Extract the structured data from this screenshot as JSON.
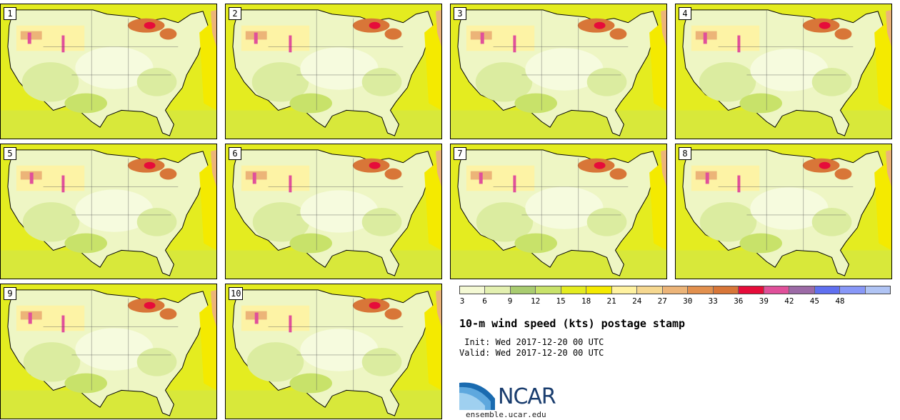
{
  "members": [
    "1",
    "2",
    "3",
    "4",
    "5",
    "6",
    "7",
    "8",
    "9",
    "10"
  ],
  "colorbar": {
    "ticks": [
      "3",
      "6",
      "9",
      "12",
      "15",
      "18",
      "21",
      "24",
      "27",
      "30",
      "33",
      "36",
      "39",
      "42",
      "45",
      "48"
    ],
    "colors": [
      "#f4f9d4",
      "#e3f0b0",
      "#a9cc70",
      "#c8e26a",
      "#e4ec20",
      "#f4ea00",
      "#fff2a0",
      "#f6d890",
      "#ecb478",
      "#e2904e",
      "#d87638",
      "#e60c3a",
      "#e0509a",
      "#9c6aa6",
      "#6070f0",
      "#8898f8",
      "#b0c4f4"
    ]
  },
  "title": "10-m wind speed (kts) postage stamp",
  "init_line": " Init: Wed 2017-12-20 00 UTC",
  "valid_line": "Valid: Wed 2017-12-20 00 UTC",
  "logo_text": "NCAR",
  "site": "ensemble.ucar.edu"
}
